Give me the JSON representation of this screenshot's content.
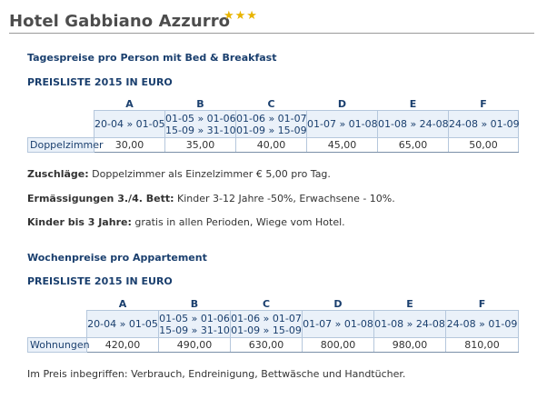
{
  "header": {
    "hotel_name": "Hotel Gabbiano Azzurro",
    "stars": "★★★"
  },
  "section1": {
    "heading": "Tagespreise pro Person mit Bed & Breakfast",
    "subheading": "PREISLISTE 2015 IN EURO",
    "columns": [
      {
        "label": "A",
        "periods": [
          "20-04 » 01-05"
        ]
      },
      {
        "label": "B",
        "periods": [
          "01-05 » 01-06",
          "15-09 » 31-10"
        ]
      },
      {
        "label": "C",
        "periods": [
          "01-06 » 01-07",
          "01-09 » 15-09"
        ]
      },
      {
        "label": "D",
        "periods": [
          "01-07 » 01-08"
        ]
      },
      {
        "label": "E",
        "periods": [
          "01-08 » 24-08"
        ]
      },
      {
        "label": "F",
        "periods": [
          "24-08 » 01-09"
        ]
      }
    ],
    "row_label": "Doppelzimmer",
    "prices": [
      "30,00",
      "35,00",
      "40,00",
      "45,00",
      "65,00",
      "50,00"
    ]
  },
  "notes": {
    "surcharge_label": "Zuschläge:",
    "surcharge_text": " Doppelzimmer als Einzelzimmer € 5,00 pro Tag.",
    "discount_label": "Ermässigungen 3./4. Bett:",
    "discount_text": " Kinder 3-12 Jahre -50%, Erwachsene - 10%.",
    "children_label": "Kinder bis 3 Jahre:",
    "children_text": " gratis in allen Perioden, Wiege vom Hotel."
  },
  "section2": {
    "heading": "Wochenpreise pro Appartement",
    "subheading": "PREISLISTE 2015 IN EURO",
    "columns": [
      {
        "label": "A",
        "periods": [
          "20-04 » 01-05"
        ]
      },
      {
        "label": "B",
        "periods": [
          "01-05 » 01-06",
          "15-09 » 31-10"
        ]
      },
      {
        "label": "C",
        "periods": [
          "01-06 » 01-07",
          "01-09 » 15-09"
        ]
      },
      {
        "label": "D",
        "periods": [
          "01-07 » 01-08"
        ]
      },
      {
        "label": "E",
        "periods": [
          "01-08 » 24-08"
        ]
      },
      {
        "label": "F",
        "periods": [
          "24-08 » 01-09"
        ]
      }
    ],
    "row_label": "Wohnungen",
    "prices": [
      "420,00",
      "490,00",
      "630,00",
      "800,00",
      "980,00",
      "810,00"
    ]
  },
  "footer_note": "Im Preis inbegriffen: Verbrauch, Endreinigung, Bettwäsche und Handtücher."
}
